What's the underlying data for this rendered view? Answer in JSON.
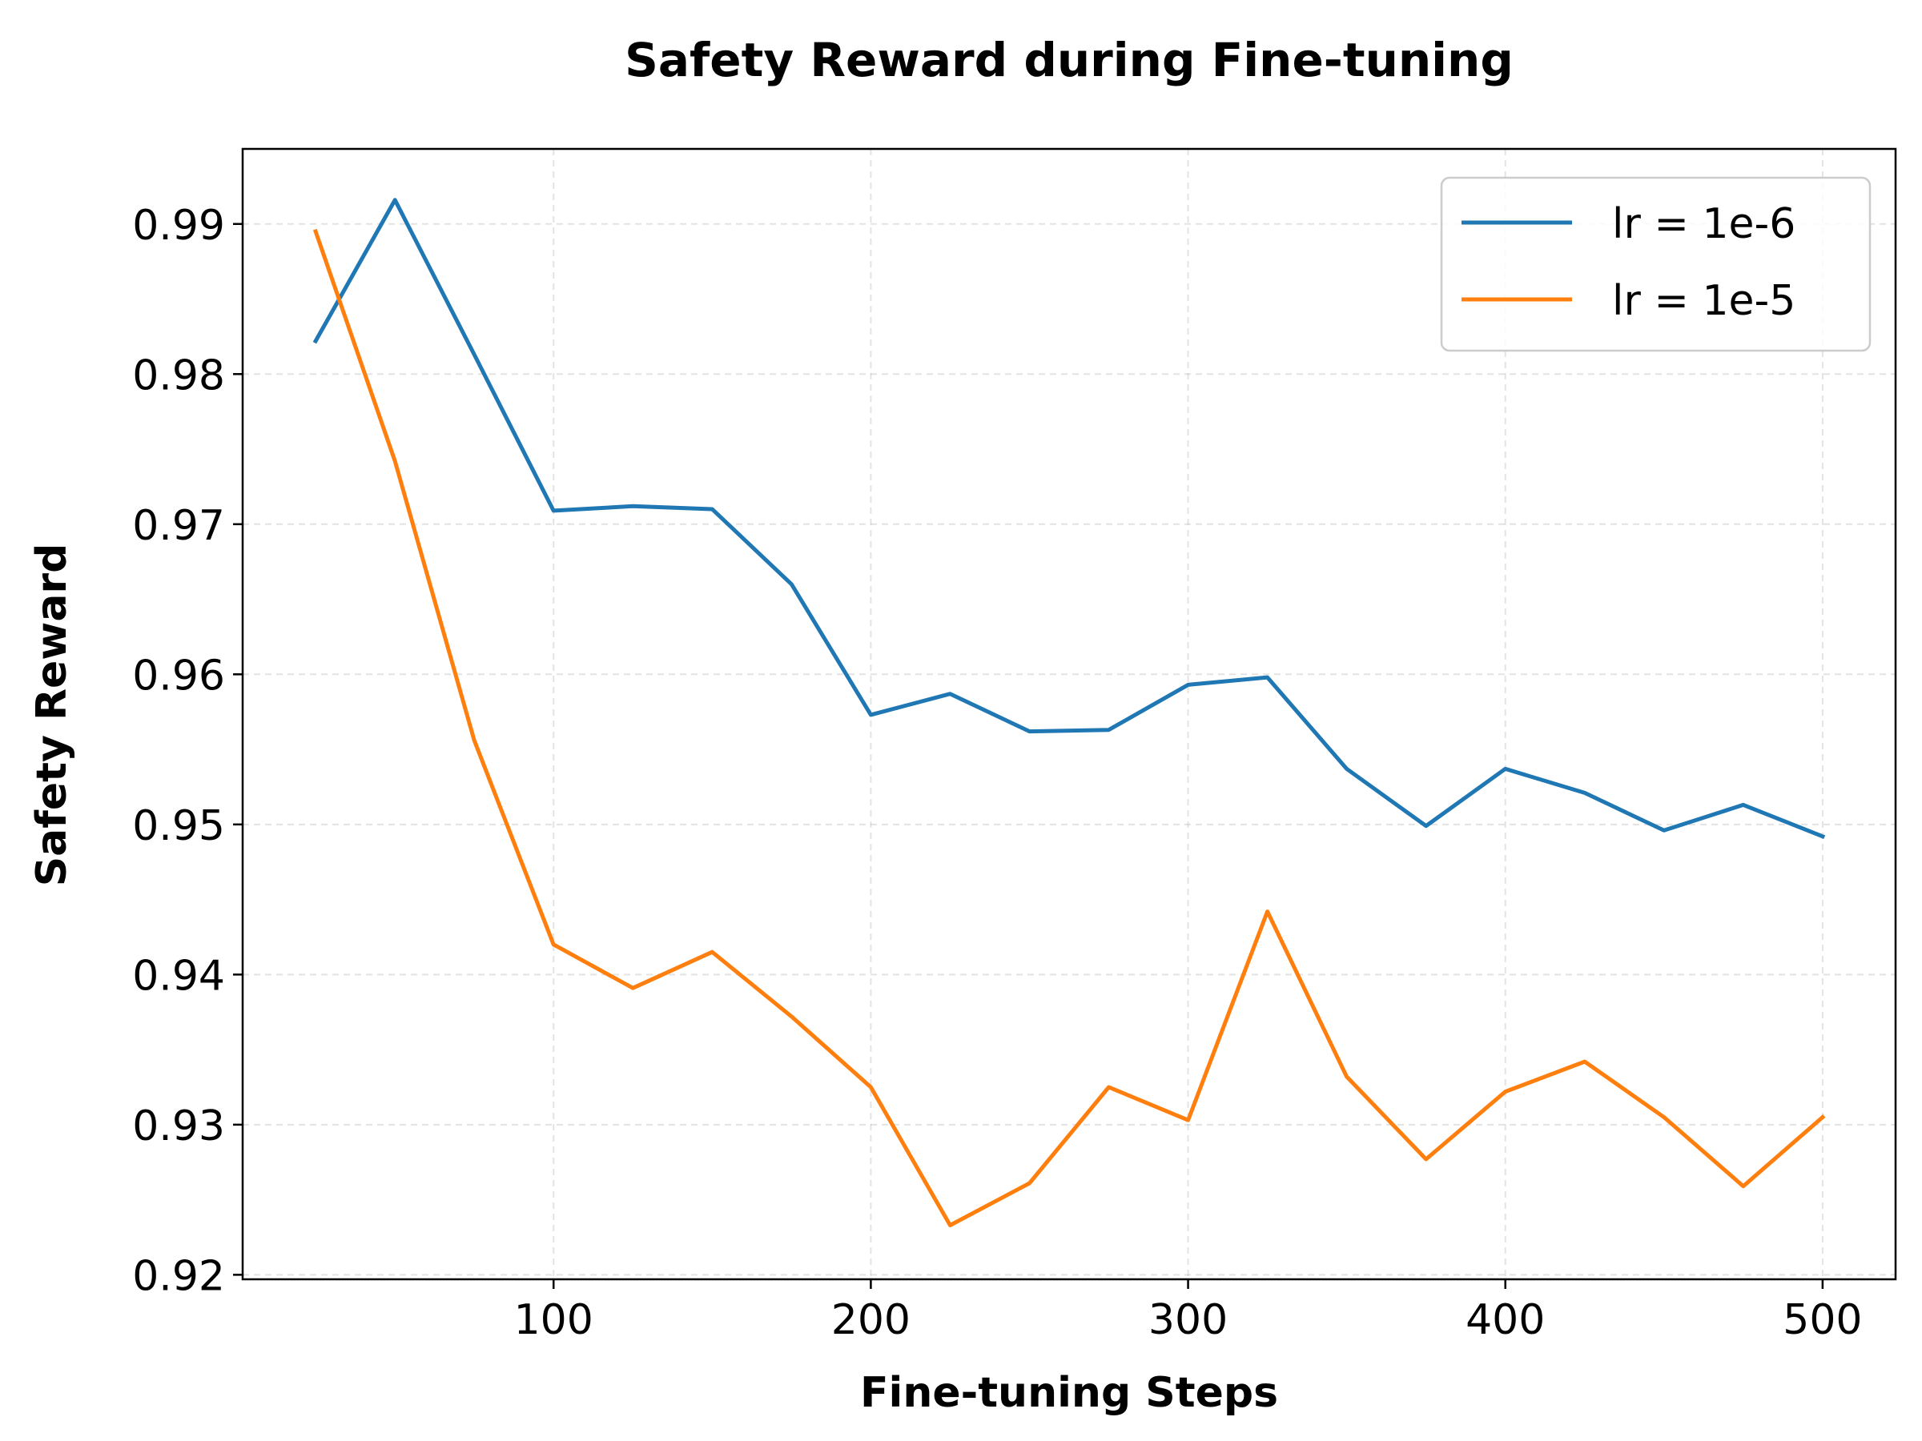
{
  "chart_data": {
    "type": "line",
    "title": "Safety Reward during Fine-tuning",
    "xlabel": "Fine-tuning Steps",
    "ylabel": "Safety Reward",
    "xlim": [
      2,
      523
    ],
    "ylim": [
      0.9197,
      0.995
    ],
    "xticks": [
      100,
      200,
      300,
      400,
      500
    ],
    "yticks": [
      0.92,
      0.93,
      0.94,
      0.95,
      0.96,
      0.97,
      0.98,
      0.99
    ],
    "ytick_labels": [
      "0.92",
      "0.93",
      "0.94",
      "0.95",
      "0.96",
      "0.97",
      "0.98",
      "0.99"
    ],
    "xtick_labels": [
      "100",
      "200",
      "300",
      "400",
      "500"
    ],
    "grid": true,
    "legend_position": "top-right",
    "x": [
      25,
      50,
      75,
      100,
      125,
      150,
      175,
      200,
      225,
      250,
      275,
      300,
      325,
      350,
      375,
      400,
      425,
      450,
      475,
      500
    ],
    "series": [
      {
        "name": "lr = 1e-6",
        "color": "#1f77b4",
        "values": [
          0.9822,
          0.9916,
          0.9813,
          0.9709,
          0.9712,
          0.971,
          0.966,
          0.9573,
          0.9587,
          0.9562,
          0.9563,
          0.9593,
          0.9598,
          0.9537,
          0.9499,
          0.9537,
          0.9521,
          0.9496,
          0.9513,
          0.9492
        ]
      },
      {
        "name": "lr = 1e-5",
        "color": "#ff7f0e",
        "values": [
          0.9895,
          0.9742,
          0.9556,
          0.942,
          0.9391,
          0.9415,
          0.9372,
          0.9325,
          0.9233,
          0.9261,
          0.9325,
          0.9303,
          0.9442,
          0.9332,
          0.9277,
          0.9322,
          0.9342,
          0.9305,
          0.9259,
          0.9305
        ]
      }
    ]
  }
}
